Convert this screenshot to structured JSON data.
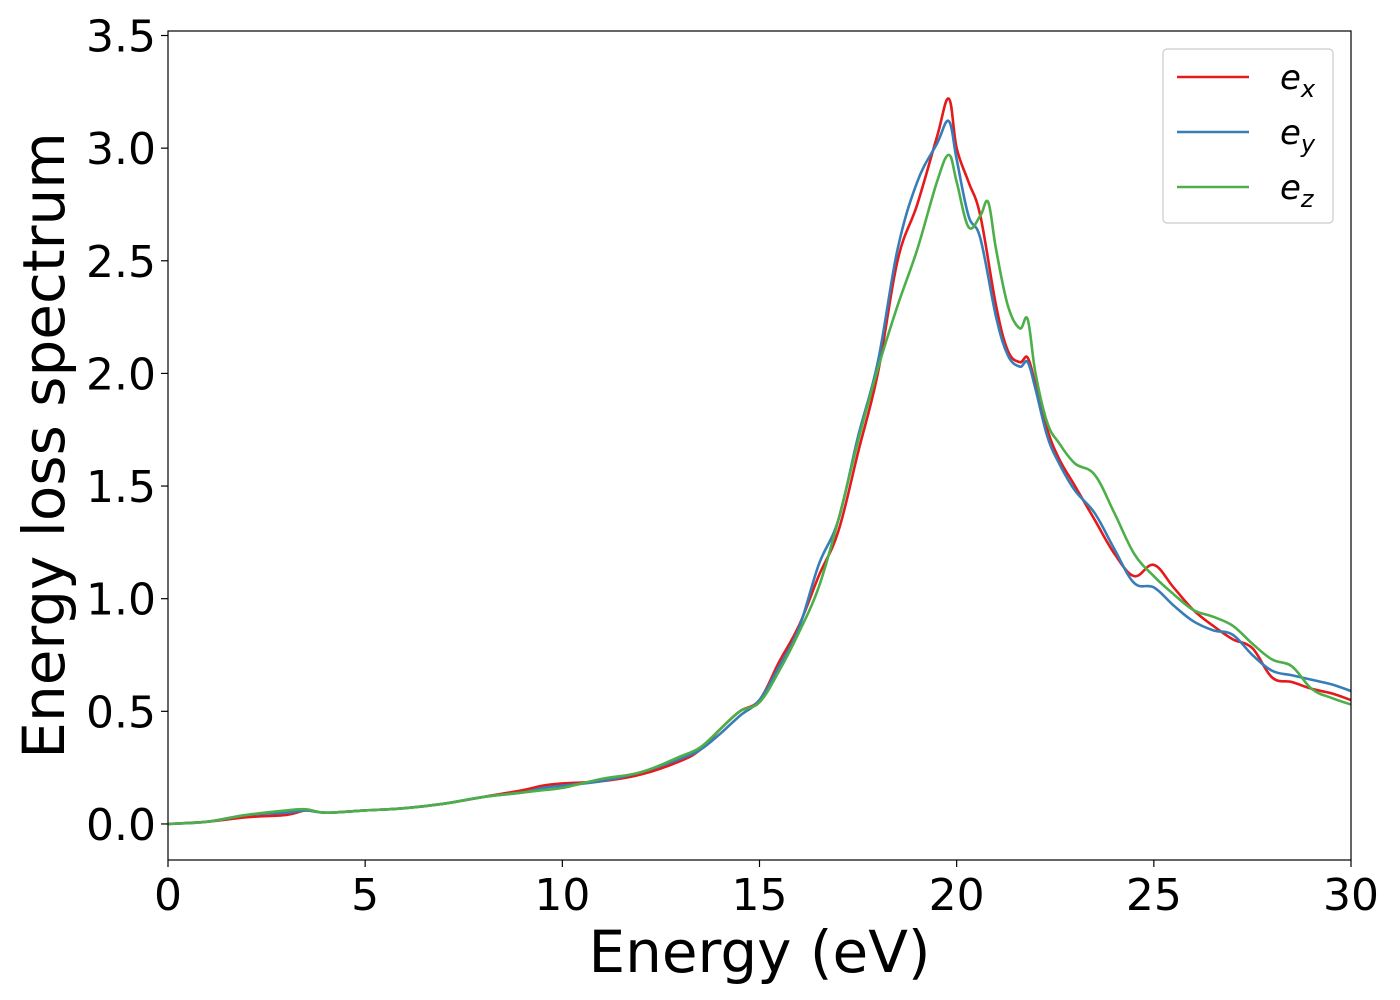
{
  "chart_data": {
    "type": "line",
    "title": "",
    "xlabel": "Energy (eV)",
    "ylabel": "Energy loss spectrum",
    "xlim": [
      0,
      30
    ],
    "ylim": [
      -0.16,
      3.52
    ],
    "xticks": [
      0,
      5,
      10,
      15,
      20,
      25,
      30
    ],
    "yticks": [
      0.0,
      0.5,
      1.0,
      1.5,
      2.0,
      2.5,
      3.0,
      3.5
    ],
    "ytick_labels": [
      "0.0",
      "0.5",
      "1.0",
      "1.5",
      "2.0",
      "2.5",
      "3.0",
      "3.5"
    ],
    "grid": false,
    "legend_position": "top-right",
    "series": [
      {
        "name": "e_x",
        "label_base": "e",
        "label_sub": "x",
        "color": "#e41a1c",
        "x": [
          0,
          1,
          2,
          3,
          3.5,
          4,
          5,
          6,
          7,
          8,
          9,
          9.5,
          10,
          11,
          12,
          13,
          13.5,
          14,
          14.5,
          15,
          15.5,
          16,
          16.5,
          17,
          17.5,
          18,
          18.5,
          19,
          19.5,
          19.8,
          20,
          20.3,
          20.6,
          21,
          21.3,
          21.6,
          21.8,
          22,
          22.3,
          22.6,
          23,
          23.5,
          24,
          24.5,
          25,
          25.5,
          26,
          26.5,
          27,
          27.5,
          28,
          28.5,
          29,
          29.5,
          30
        ],
        "y": [
          0.0,
          0.01,
          0.03,
          0.04,
          0.06,
          0.05,
          0.06,
          0.07,
          0.09,
          0.12,
          0.15,
          0.17,
          0.18,
          0.19,
          0.22,
          0.28,
          0.33,
          0.42,
          0.5,
          0.55,
          0.72,
          0.88,
          1.1,
          1.3,
          1.65,
          2.0,
          2.5,
          2.75,
          3.05,
          3.22,
          3.0,
          2.85,
          2.7,
          2.3,
          2.1,
          2.05,
          2.07,
          1.95,
          1.75,
          1.62,
          1.5,
          1.35,
          1.2,
          1.1,
          1.15,
          1.05,
          0.95,
          0.88,
          0.82,
          0.78,
          0.65,
          0.63,
          0.6,
          0.58,
          0.55
        ]
      },
      {
        "name": "e_y",
        "label_base": "e",
        "label_sub": "y",
        "color": "#377eb8",
        "x": [
          0,
          1,
          2,
          3,
          3.5,
          4,
          5,
          6,
          7,
          8,
          9,
          9.5,
          10,
          11,
          12,
          13,
          13.5,
          14,
          14.5,
          15,
          15.5,
          16,
          16.5,
          17,
          17.5,
          18,
          18.5,
          19,
          19.5,
          19.8,
          20,
          20.3,
          20.6,
          21,
          21.3,
          21.6,
          21.8,
          22,
          22.3,
          22.6,
          23,
          23.5,
          24,
          24.5,
          25,
          25.5,
          26,
          26.5,
          27,
          27.5,
          28,
          28.5,
          29,
          29.5,
          30
        ],
        "y": [
          0.0,
          0.01,
          0.04,
          0.05,
          0.06,
          0.05,
          0.06,
          0.07,
          0.09,
          0.12,
          0.14,
          0.16,
          0.17,
          0.19,
          0.23,
          0.29,
          0.33,
          0.4,
          0.48,
          0.55,
          0.7,
          0.87,
          1.15,
          1.35,
          1.72,
          2.05,
          2.55,
          2.85,
          3.02,
          3.12,
          2.95,
          2.7,
          2.6,
          2.25,
          2.08,
          2.03,
          2.05,
          1.93,
          1.72,
          1.6,
          1.48,
          1.38,
          1.22,
          1.07,
          1.05,
          0.97,
          0.9,
          0.86,
          0.84,
          0.75,
          0.68,
          0.66,
          0.64,
          0.62,
          0.59
        ]
      },
      {
        "name": "e_z",
        "label_base": "e",
        "label_sub": "z",
        "color": "#4daf4a",
        "x": [
          0,
          1,
          2,
          3,
          3.5,
          4,
          5,
          6,
          7,
          8,
          9,
          9.5,
          10,
          11,
          12,
          13,
          13.5,
          14,
          14.5,
          15,
          15.5,
          16,
          16.5,
          17,
          17.5,
          18,
          18.5,
          19,
          19.5,
          19.8,
          20,
          20.3,
          20.6,
          20.8,
          21,
          21.3,
          21.6,
          21.8,
          22,
          22.3,
          22.6,
          23,
          23.5,
          24,
          24.5,
          25,
          25.5,
          26,
          26.5,
          27,
          27.5,
          28,
          28.5,
          29,
          29.5,
          30
        ],
        "y": [
          0.0,
          0.01,
          0.04,
          0.06,
          0.065,
          0.05,
          0.06,
          0.07,
          0.09,
          0.12,
          0.14,
          0.15,
          0.16,
          0.2,
          0.23,
          0.3,
          0.34,
          0.42,
          0.5,
          0.54,
          0.68,
          0.85,
          1.05,
          1.35,
          1.7,
          2.02,
          2.3,
          2.55,
          2.85,
          2.97,
          2.85,
          2.65,
          2.7,
          2.76,
          2.55,
          2.3,
          2.2,
          2.24,
          2.0,
          1.78,
          1.69,
          1.6,
          1.55,
          1.38,
          1.2,
          1.1,
          1.02,
          0.95,
          0.92,
          0.88,
          0.8,
          0.73,
          0.7,
          0.6,
          0.56,
          0.53
        ]
      }
    ]
  }
}
